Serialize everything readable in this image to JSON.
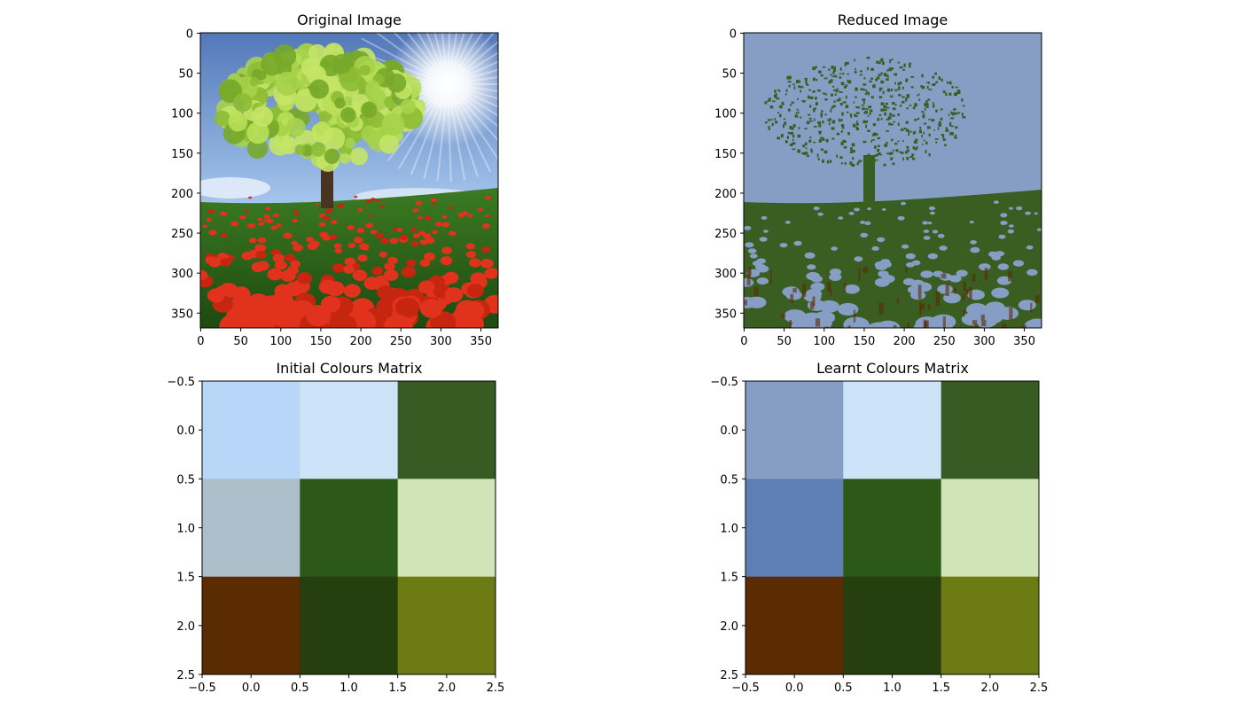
{
  "figure": {
    "panels": [
      {
        "id": "original",
        "title": "Original Image",
        "kind": "image",
        "image_content": "photo",
        "xticks": [
          0,
          50,
          100,
          150,
          200,
          250,
          300,
          350
        ],
        "yticks": [
          0,
          50,
          100,
          150,
          200,
          250,
          300,
          350
        ],
        "xlim": [
          -0.5,
          371.5
        ],
        "ylim": [
          368.5,
          -0.5
        ]
      },
      {
        "id": "reduced",
        "title": "Reduced Image",
        "kind": "image",
        "image_content": "quantized",
        "xticks": [
          0,
          50,
          100,
          150,
          200,
          250,
          300,
          350
        ],
        "yticks": [
          0,
          50,
          100,
          150,
          200,
          250,
          300,
          350
        ],
        "xlim": [
          -0.5,
          371.5
        ],
        "ylim": [
          368.5,
          -0.5
        ]
      },
      {
        "id": "initial",
        "title": "Initial Colours Matrix",
        "kind": "matrix",
        "xticks": [
          -0.5,
          0.0,
          0.5,
          1.0,
          1.5,
          2.0,
          2.5
        ],
        "yticks": [
          -0.5,
          0.0,
          0.5,
          1.0,
          1.5,
          2.0,
          2.5
        ],
        "xtick_labels": [
          "−0.5",
          "0.0",
          "0.5",
          "1.0",
          "1.5",
          "2.0",
          "2.5"
        ],
        "ytick_labels": [
          "−0.5",
          "0.0",
          "0.5",
          "1.0",
          "1.5",
          "2.0",
          "2.5"
        ],
        "xlim": [
          -0.5,
          2.5
        ],
        "ylim": [
          2.5,
          -0.5
        ],
        "colors": [
          [
            "#b8d6f8",
            "#cde3f8",
            "#385b24"
          ],
          [
            "#aebdca",
            "#2d5918",
            "#cfe4b7"
          ],
          [
            "#5b2b01",
            "#263f0e",
            "#6d7b14"
          ]
        ]
      },
      {
        "id": "learnt",
        "title": "Learnt Colours Matrix",
        "kind": "matrix",
        "xticks": [
          -0.5,
          0.0,
          0.5,
          1.0,
          1.5,
          2.0,
          2.5
        ],
        "yticks": [
          -0.5,
          0.0,
          0.5,
          1.0,
          1.5,
          2.0,
          2.5
        ],
        "xtick_labels": [
          "−0.5",
          "0.0",
          "0.5",
          "1.0",
          "1.5",
          "2.0",
          "2.5"
        ],
        "ytick_labels": [
          "−0.5",
          "0.0",
          "0.5",
          "1.0",
          "1.5",
          "2.0",
          "2.5"
        ],
        "xlim": [
          -0.5,
          2.5
        ],
        "ylim": [
          2.5,
          -0.5
        ],
        "colors": [
          [
            "#869dc4",
            "#cde3f8",
            "#385b24"
          ],
          [
            "#5d7fb4",
            "#2d5918",
            "#cfe4b7"
          ],
          [
            "#5b2b01",
            "#263f0e",
            "#6d7b14"
          ]
        ]
      }
    ]
  },
  "chart_data": [
    {
      "type": "heatmap",
      "title": "Original Image",
      "xlabel": "",
      "ylabel": "",
      "xlim": [
        0,
        372
      ],
      "ylim": [
        369,
        0
      ],
      "grid": false,
      "note_values": "photograph pixels"
    },
    {
      "type": "heatmap",
      "title": "Reduced Image",
      "xlabel": "",
      "ylabel": "",
      "xlim": [
        0,
        372
      ],
      "ylim": [
        369,
        0
      ],
      "grid": false
    },
    {
      "type": "heatmap",
      "title": "Initial Colours Matrix",
      "xlabel": "",
      "ylabel": "",
      "xlim": [
        -0.5,
        2.5
      ],
      "ylim": [
        2.5,
        -0.5
      ],
      "grid": false,
      "rows": 3,
      "cols": 3
    },
    {
      "type": "heatmap",
      "title": "Learnt Colours Matrix",
      "xlabel": "",
      "ylabel": "",
      "xlim": [
        -0.5,
        2.5
      ],
      "ylim": [
        2.5,
        -0.5
      ],
      "grid": false,
      "rows": 3,
      "cols": 3
    }
  ],
  "palette": {
    "sky": "#5f86c2",
    "sky_light": "#a9c6ec",
    "cloud": "#e6eef8",
    "sun": "#ffffff",
    "grass": "#2f6b1e",
    "grass_dark": "#1f4a12",
    "leaf": "#a6d24a",
    "leaf_dark": "#6f9f2a",
    "trunk": "#4a3320",
    "poppy": "#e0321c",
    "poppy_dark": "#b21e0c",
    "reduced_bg": "#869dc4",
    "reduced_fg": "#3a5e22",
    "reduced_fg2": "#2d5918",
    "reduced_brown": "#5b2b01"
  }
}
